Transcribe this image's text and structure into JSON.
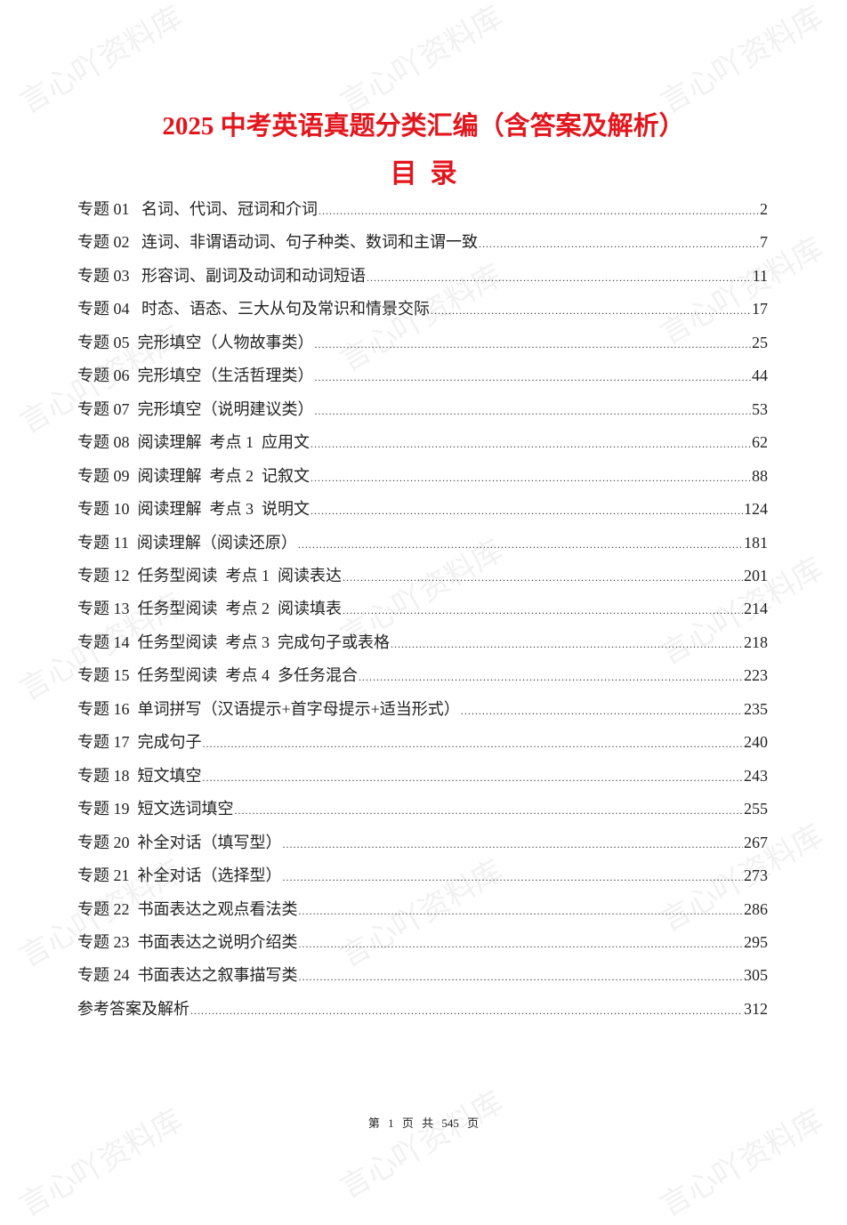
{
  "watermark": "言心吖资料库",
  "title": "2025 中考英语真题分类汇编（含答案及解析）",
  "subtitle": "目  录",
  "toc": [
    {
      "label": "专题 01   名词、代词、冠词和介词",
      "page": "2"
    },
    {
      "label": "专题 02   连词、非谓语动词、句子种类、数词和主谓一致",
      "page": "7"
    },
    {
      "label": "专题 03   形容词、副词及动词和动词短语",
      "page": "11"
    },
    {
      "label": "专题 04   时态、语态、三大从句及常识和情景交际",
      "page": "17"
    },
    {
      "label": "专题 05  完形填空（人物故事类）",
      "page": "25"
    },
    {
      "label": "专题 06  完形填空（生活哲理类）",
      "page": "44"
    },
    {
      "label": "专题 07  完形填空（说明建议类）",
      "page": "53"
    },
    {
      "label": "专题 08  阅读理解  考点 1  应用文",
      "page": "62"
    },
    {
      "label": "专题 09  阅读理解  考点 2  记叙文",
      "page": "88"
    },
    {
      "label": "专题 10  阅读理解  考点 3  说明文",
      "page": "124"
    },
    {
      "label": "专题 11  阅读理解（阅读还原）",
      "page": "181"
    },
    {
      "label": "专题 12  任务型阅读  考点 1  阅读表达",
      "page": "201"
    },
    {
      "label": "专题 13  任务型阅读  考点 2  阅读填表",
      "page": "214"
    },
    {
      "label": "专题 14  任务型阅读  考点 3  完成句子或表格",
      "page": "218"
    },
    {
      "label": "专题 15  任务型阅读  考点 4  多任务混合",
      "page": "223"
    },
    {
      "label": "专题 16  单词拼写（汉语提示+首字母提示+适当形式）",
      "page": "235"
    },
    {
      "label": "专题 17  完成句子",
      "page": "240"
    },
    {
      "label": "专题 18  短文填空",
      "page": "243"
    },
    {
      "label": "专题 19  短文选词填空",
      "page": "255"
    },
    {
      "label": "专题 20  补全对话（填写型）",
      "page": "267"
    },
    {
      "label": "专题 21  补全对话（选择型）",
      "page": "273"
    },
    {
      "label": "专题 22  书面表达之观点看法类",
      "page": "286"
    },
    {
      "label": "专题 23  书面表达之说明介绍类",
      "page": "295"
    },
    {
      "label": "专题 24  书面表达之叙事描写类",
      "page": "305"
    },
    {
      "label": "参考答案及解析",
      "page": "312"
    }
  ],
  "footer": "第 1 页 共 545 页",
  "colors": {
    "title": "#e3161d",
    "text": "#222222"
  }
}
